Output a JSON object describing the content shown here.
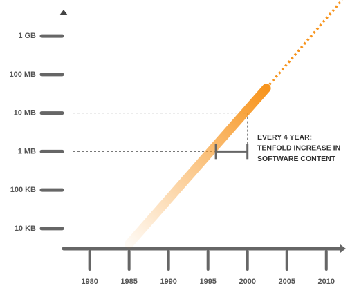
{
  "chart_data": {
    "type": "line",
    "log_y": true,
    "series": [
      {
        "x": [
          1985,
          2002.4
        ],
        "values": [
          4000,
          44000000
        ],
        "color": "#f7941d",
        "style": "gradient"
      },
      {
        "x": [
          2002.4,
          2012
        ],
        "values": [
          44000000,
          8600000000
        ],
        "color": "#f7941d",
        "style": "dotted"
      }
    ],
    "xlim": [
      1976.7,
      2012.3
    ],
    "xticks": [
      1980,
      1985,
      1990,
      1995,
      2000,
      2005,
      2010
    ],
    "ylim": [
      3000,
      8600000000
    ],
    "yticks": [
      {
        "value": 10000,
        "label": "10 KB"
      },
      {
        "value": 100000,
        "label": "100 KB"
      },
      {
        "value": 1000000,
        "label": "1 MB"
      },
      {
        "value": 10000000,
        "label": "10 MB"
      },
      {
        "value": 100000000,
        "label": "100 MB"
      },
      {
        "value": 1000000000,
        "label": "1 GB"
      }
    ],
    "interval": {
      "x": [
        1996,
        2000
      ],
      "y": [
        1000000,
        10000000
      ]
    },
    "annotation": [
      "EVERY 4 YEAR:",
      "TENFOLD INCREASE IN",
      "SOFTWARE CONTENT"
    ]
  }
}
